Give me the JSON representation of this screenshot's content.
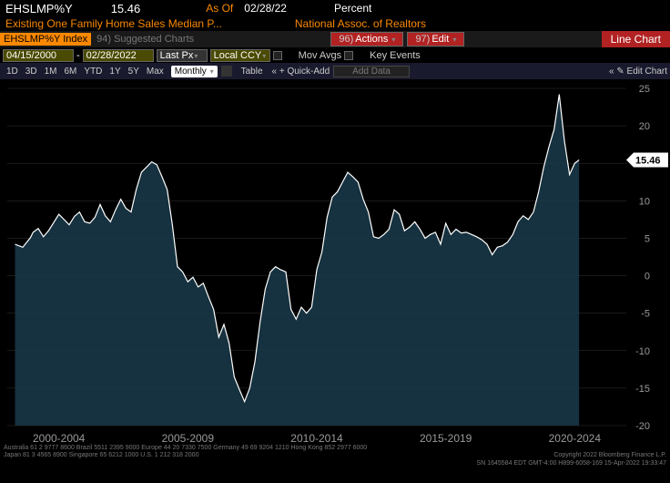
{
  "header": {
    "ticker": "EHSLMP%Y",
    "price": "15.46",
    "asof_label": "As Of",
    "asof_date": "02/28/22",
    "unit": "Percent",
    "description": "Existing One Family Home Sales Median P...",
    "source": "National Assoc. of Realtors"
  },
  "actions_bar": {
    "ticker_badge": "EHSLMP%Y Index",
    "suggested": "94) Suggested Charts",
    "actions_num": "96)",
    "actions": "Actions",
    "edit_num": "97)",
    "edit": "Edit",
    "chart_type": "Line Chart"
  },
  "params": {
    "date_start": "04/15/2000",
    "date_end": "02/28/2022",
    "last_px": "Last Px",
    "ccy": "Local CCY",
    "mov_avgs": "Mov Avgs",
    "key_events": "Key Events"
  },
  "ranges": {
    "items": [
      "1D",
      "3D",
      "1M",
      "6M",
      "YTD",
      "1Y",
      "5Y",
      "Max"
    ],
    "active": "Monthly",
    "table": "Table",
    "quick_add": "Quick-Add",
    "add_data": "Add Data",
    "edit_chart": "Edit Chart"
  },
  "chart": {
    "type": "line",
    "xlim": [
      2000,
      2024
    ],
    "ylim": [
      -20,
      25
    ],
    "ytick_step": 5,
    "yticks": [
      -20,
      -15,
      -10,
      -5,
      0,
      5,
      10,
      15,
      20,
      25
    ],
    "xticks": [
      "2000-2004",
      "2005-2009",
      "2010-2014",
      "2015-2019",
      "2020-2024"
    ],
    "xtick_pos": [
      2002,
      2007,
      2012,
      2017,
      2022
    ],
    "last_value": 15.46,
    "background_color": "#000000",
    "grid_color": "#333333",
    "line_color": "#ffffff",
    "fill_color": "#1a3a4a",
    "axis_text_color": "#999999",
    "data": [
      [
        2000.3,
        4.2
      ],
      [
        2000.6,
        3.8
      ],
      [
        2000.9,
        5.1
      ],
      [
        2001.0,
        5.8
      ],
      [
        2001.2,
        6.3
      ],
      [
        2001.4,
        5.2
      ],
      [
        2001.6,
        6.0
      ],
      [
        2001.8,
        7.1
      ],
      [
        2002.0,
        8.2
      ],
      [
        2002.2,
        7.5
      ],
      [
        2002.4,
        6.8
      ],
      [
        2002.6,
        7.9
      ],
      [
        2002.8,
        8.5
      ],
      [
        2003.0,
        7.2
      ],
      [
        2003.2,
        7.0
      ],
      [
        2003.4,
        7.8
      ],
      [
        2003.6,
        9.5
      ],
      [
        2003.8,
        8.0
      ],
      [
        2004.0,
        7.2
      ],
      [
        2004.2,
        8.8
      ],
      [
        2004.4,
        10.2
      ],
      [
        2004.6,
        9.0
      ],
      [
        2004.8,
        8.5
      ],
      [
        2005.0,
        11.5
      ],
      [
        2005.2,
        13.8
      ],
      [
        2005.4,
        14.5
      ],
      [
        2005.6,
        15.2
      ],
      [
        2005.8,
        14.8
      ],
      [
        2006.0,
        13.2
      ],
      [
        2006.2,
        11.5
      ],
      [
        2006.4,
        6.8
      ],
      [
        2006.6,
        1.2
      ],
      [
        2006.8,
        0.5
      ],
      [
        2007.0,
        -0.8
      ],
      [
        2007.2,
        -0.2
      ],
      [
        2007.4,
        -1.5
      ],
      [
        2007.6,
        -1.0
      ],
      [
        2007.8,
        -2.8
      ],
      [
        2008.0,
        -4.5
      ],
      [
        2008.2,
        -8.2
      ],
      [
        2008.4,
        -6.5
      ],
      [
        2008.6,
        -9.0
      ],
      [
        2008.8,
        -13.5
      ],
      [
        2009.0,
        -15.2
      ],
      [
        2009.2,
        -16.8
      ],
      [
        2009.4,
        -15.0
      ],
      [
        2009.6,
        -11.5
      ],
      [
        2009.8,
        -6.2
      ],
      [
        2010.0,
        -1.8
      ],
      [
        2010.2,
        0.5
      ],
      [
        2010.4,
        1.2
      ],
      [
        2010.6,
        0.8
      ],
      [
        2010.8,
        0.5
      ],
      [
        2011.0,
        -4.5
      ],
      [
        2011.2,
        -5.8
      ],
      [
        2011.4,
        -4.2
      ],
      [
        2011.6,
        -5.0
      ],
      [
        2011.8,
        -4.2
      ],
      [
        2012.0,
        0.8
      ],
      [
        2012.2,
        3.2
      ],
      [
        2012.4,
        7.8
      ],
      [
        2012.6,
        10.5
      ],
      [
        2012.8,
        11.2
      ],
      [
        2013.0,
        12.5
      ],
      [
        2013.2,
        13.8
      ],
      [
        2013.4,
        13.2
      ],
      [
        2013.6,
        12.5
      ],
      [
        2013.8,
        10.2
      ],
      [
        2014.0,
        8.5
      ],
      [
        2014.2,
        5.2
      ],
      [
        2014.4,
        5.0
      ],
      [
        2014.6,
        5.5
      ],
      [
        2014.8,
        6.2
      ],
      [
        2015.0,
        8.8
      ],
      [
        2015.2,
        8.2
      ],
      [
        2015.4,
        6.0
      ],
      [
        2015.6,
        6.5
      ],
      [
        2015.8,
        7.2
      ],
      [
        2016.0,
        6.2
      ],
      [
        2016.2,
        5.0
      ],
      [
        2016.4,
        5.5
      ],
      [
        2016.6,
        5.8
      ],
      [
        2016.8,
        4.2
      ],
      [
        2017.0,
        7.0
      ],
      [
        2017.2,
        5.5
      ],
      [
        2017.4,
        6.2
      ],
      [
        2017.6,
        5.7
      ],
      [
        2017.8,
        5.8
      ],
      [
        2018.0,
        5.5
      ],
      [
        2018.2,
        5.2
      ],
      [
        2018.4,
        4.8
      ],
      [
        2018.6,
        4.2
      ],
      [
        2018.8,
        2.8
      ],
      [
        2019.0,
        3.8
      ],
      [
        2019.2,
        4.0
      ],
      [
        2019.4,
        4.5
      ],
      [
        2019.6,
        5.5
      ],
      [
        2019.8,
        7.2
      ],
      [
        2020.0,
        8.0
      ],
      [
        2020.2,
        7.5
      ],
      [
        2020.4,
        8.5
      ],
      [
        2020.6,
        11.2
      ],
      [
        2020.8,
        14.5
      ],
      [
        2021.0,
        17.2
      ],
      [
        2021.2,
        19.5
      ],
      [
        2021.4,
        24.2
      ],
      [
        2021.6,
        18.0
      ],
      [
        2021.8,
        13.5
      ],
      [
        2022.0,
        15.0
      ],
      [
        2022.17,
        15.46
      ]
    ]
  },
  "footer": {
    "line1_left": "Australia 61 2 9777 8600 Brazil 5511 2395 9000 Europe 44 20 7330 7500 Germany 49 69 9204 1210 Hong Kong 852 2977 6000",
    "line2_left": "Japan 81 3 4565 8900        Singapore 65 6212 1000        U.S. 1 212 318 2000",
    "line2_right": "Copyright 2022 Bloomberg Finance L.P.",
    "line3_right": "SN 1645584 EDT   GMT-4:00 H899-6058-169 15-Apr-2022 19:33:47"
  }
}
